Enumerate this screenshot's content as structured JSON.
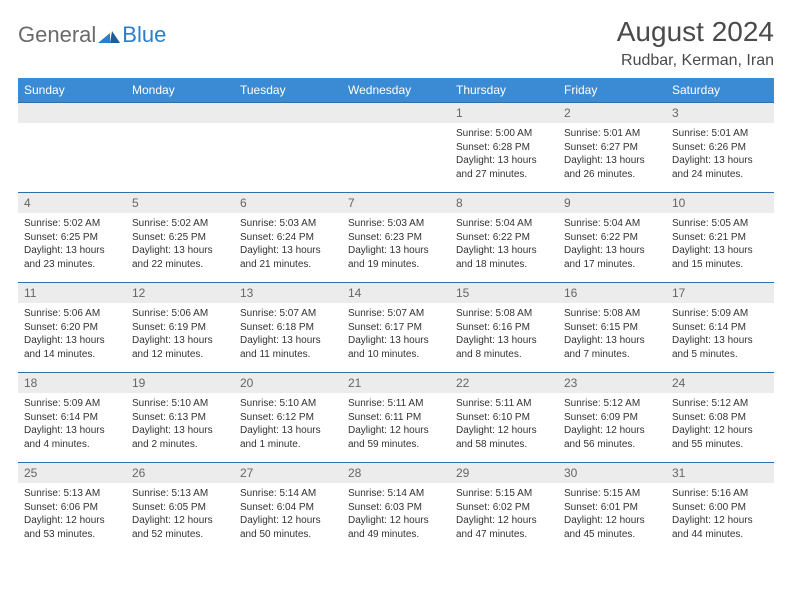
{
  "logo": {
    "general": "General",
    "blue": "Blue"
  },
  "title": "August 2024",
  "location": "Rudbar, Kerman, Iran",
  "colors": {
    "header_bg": "#3b8bd4",
    "header_text": "#ffffff",
    "daynum_bg": "#ececec",
    "daynum_text": "#666666",
    "cell_border": "#2d6fa8",
    "body_text": "#333333",
    "logo_gray": "#6b6b6b",
    "logo_blue": "#2a7fcc"
  },
  "weekdays": [
    "Sunday",
    "Monday",
    "Tuesday",
    "Wednesday",
    "Thursday",
    "Friday",
    "Saturday"
  ],
  "weeks": [
    [
      null,
      null,
      null,
      null,
      {
        "n": "1",
        "sr": "Sunrise: 5:00 AM",
        "ss": "Sunset: 6:28 PM",
        "dl": "Daylight: 13 hours and 27 minutes."
      },
      {
        "n": "2",
        "sr": "Sunrise: 5:01 AM",
        "ss": "Sunset: 6:27 PM",
        "dl": "Daylight: 13 hours and 26 minutes."
      },
      {
        "n": "3",
        "sr": "Sunrise: 5:01 AM",
        "ss": "Sunset: 6:26 PM",
        "dl": "Daylight: 13 hours and 24 minutes."
      }
    ],
    [
      {
        "n": "4",
        "sr": "Sunrise: 5:02 AM",
        "ss": "Sunset: 6:25 PM",
        "dl": "Daylight: 13 hours and 23 minutes."
      },
      {
        "n": "5",
        "sr": "Sunrise: 5:02 AM",
        "ss": "Sunset: 6:25 PM",
        "dl": "Daylight: 13 hours and 22 minutes."
      },
      {
        "n": "6",
        "sr": "Sunrise: 5:03 AM",
        "ss": "Sunset: 6:24 PM",
        "dl": "Daylight: 13 hours and 21 minutes."
      },
      {
        "n": "7",
        "sr": "Sunrise: 5:03 AM",
        "ss": "Sunset: 6:23 PM",
        "dl": "Daylight: 13 hours and 19 minutes."
      },
      {
        "n": "8",
        "sr": "Sunrise: 5:04 AM",
        "ss": "Sunset: 6:22 PM",
        "dl": "Daylight: 13 hours and 18 minutes."
      },
      {
        "n": "9",
        "sr": "Sunrise: 5:04 AM",
        "ss": "Sunset: 6:22 PM",
        "dl": "Daylight: 13 hours and 17 minutes."
      },
      {
        "n": "10",
        "sr": "Sunrise: 5:05 AM",
        "ss": "Sunset: 6:21 PM",
        "dl": "Daylight: 13 hours and 15 minutes."
      }
    ],
    [
      {
        "n": "11",
        "sr": "Sunrise: 5:06 AM",
        "ss": "Sunset: 6:20 PM",
        "dl": "Daylight: 13 hours and 14 minutes."
      },
      {
        "n": "12",
        "sr": "Sunrise: 5:06 AM",
        "ss": "Sunset: 6:19 PM",
        "dl": "Daylight: 13 hours and 12 minutes."
      },
      {
        "n": "13",
        "sr": "Sunrise: 5:07 AM",
        "ss": "Sunset: 6:18 PM",
        "dl": "Daylight: 13 hours and 11 minutes."
      },
      {
        "n": "14",
        "sr": "Sunrise: 5:07 AM",
        "ss": "Sunset: 6:17 PM",
        "dl": "Daylight: 13 hours and 10 minutes."
      },
      {
        "n": "15",
        "sr": "Sunrise: 5:08 AM",
        "ss": "Sunset: 6:16 PM",
        "dl": "Daylight: 13 hours and 8 minutes."
      },
      {
        "n": "16",
        "sr": "Sunrise: 5:08 AM",
        "ss": "Sunset: 6:15 PM",
        "dl": "Daylight: 13 hours and 7 minutes."
      },
      {
        "n": "17",
        "sr": "Sunrise: 5:09 AM",
        "ss": "Sunset: 6:14 PM",
        "dl": "Daylight: 13 hours and 5 minutes."
      }
    ],
    [
      {
        "n": "18",
        "sr": "Sunrise: 5:09 AM",
        "ss": "Sunset: 6:14 PM",
        "dl": "Daylight: 13 hours and 4 minutes."
      },
      {
        "n": "19",
        "sr": "Sunrise: 5:10 AM",
        "ss": "Sunset: 6:13 PM",
        "dl": "Daylight: 13 hours and 2 minutes."
      },
      {
        "n": "20",
        "sr": "Sunrise: 5:10 AM",
        "ss": "Sunset: 6:12 PM",
        "dl": "Daylight: 13 hours and 1 minute."
      },
      {
        "n": "21",
        "sr": "Sunrise: 5:11 AM",
        "ss": "Sunset: 6:11 PM",
        "dl": "Daylight: 12 hours and 59 minutes."
      },
      {
        "n": "22",
        "sr": "Sunrise: 5:11 AM",
        "ss": "Sunset: 6:10 PM",
        "dl": "Daylight: 12 hours and 58 minutes."
      },
      {
        "n": "23",
        "sr": "Sunrise: 5:12 AM",
        "ss": "Sunset: 6:09 PM",
        "dl": "Daylight: 12 hours and 56 minutes."
      },
      {
        "n": "24",
        "sr": "Sunrise: 5:12 AM",
        "ss": "Sunset: 6:08 PM",
        "dl": "Daylight: 12 hours and 55 minutes."
      }
    ],
    [
      {
        "n": "25",
        "sr": "Sunrise: 5:13 AM",
        "ss": "Sunset: 6:06 PM",
        "dl": "Daylight: 12 hours and 53 minutes."
      },
      {
        "n": "26",
        "sr": "Sunrise: 5:13 AM",
        "ss": "Sunset: 6:05 PM",
        "dl": "Daylight: 12 hours and 52 minutes."
      },
      {
        "n": "27",
        "sr": "Sunrise: 5:14 AM",
        "ss": "Sunset: 6:04 PM",
        "dl": "Daylight: 12 hours and 50 minutes."
      },
      {
        "n": "28",
        "sr": "Sunrise: 5:14 AM",
        "ss": "Sunset: 6:03 PM",
        "dl": "Daylight: 12 hours and 49 minutes."
      },
      {
        "n": "29",
        "sr": "Sunrise: 5:15 AM",
        "ss": "Sunset: 6:02 PM",
        "dl": "Daylight: 12 hours and 47 minutes."
      },
      {
        "n": "30",
        "sr": "Sunrise: 5:15 AM",
        "ss": "Sunset: 6:01 PM",
        "dl": "Daylight: 12 hours and 45 minutes."
      },
      {
        "n": "31",
        "sr": "Sunrise: 5:16 AM",
        "ss": "Sunset: 6:00 PM",
        "dl": "Daylight: 12 hours and 44 minutes."
      }
    ]
  ]
}
